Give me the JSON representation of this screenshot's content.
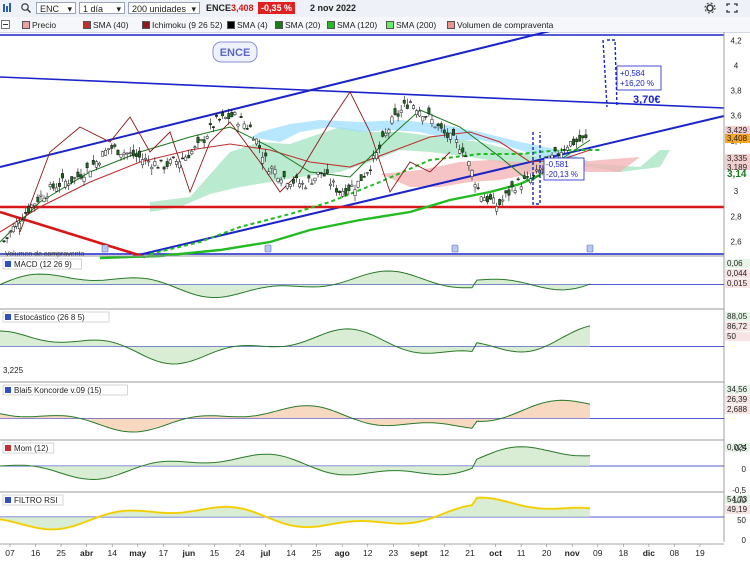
{
  "toolbar": {
    "symbol": "ENC",
    "period": "1 día",
    "units": "200 unidades",
    "ticker": "ENCE",
    "price": "3,408",
    "change": "-0,35 %",
    "date": "2 nov 2022",
    "colors": {
      "change_bg": "#e02020",
      "price": "#d01818"
    }
  },
  "legend": [
    {
      "label": "Precio",
      "color": "#f0a0a0"
    },
    {
      "label": "SMA (40)",
      "color": "#c03030"
    },
    {
      "label": "Ichimoku (9 26 52)",
      "color": "#8b1a1a"
    },
    {
      "label": "SMA (4)",
      "color": "#000000"
    },
    {
      "label": "SMA (20)",
      "color": "#1a7a1a"
    },
    {
      "label": "SMA (120)",
      "color": "#22bb22"
    },
    {
      "label": "SMA (200)",
      "color": "#66ee66"
    },
    {
      "label": "Volumen de compraventa",
      "color": "#f09090"
    }
  ],
  "main": {
    "badge": "ENCE",
    "target_label": "3,70€",
    "up_box": [
      "+0,584",
      "+16,20 %"
    ],
    "down_box": [
      "-0,581",
      "-20,13 %"
    ],
    "volume_label": "Volumen de compraventa",
    "price_tag": "3,408",
    "left_value": "3,225"
  },
  "chart_data": [
    {
      "type": "candlestick",
      "title": "",
      "x_ticks": [
        "07",
        "16",
        "25",
        "abr",
        "14",
        "may",
        "17",
        "jun",
        "15",
        "24",
        "jul",
        "14",
        "25",
        "ago",
        "12",
        "23",
        "sept",
        "12",
        "21",
        "oct",
        "11",
        "20",
        "nov",
        "09",
        "18",
        "dic",
        "08",
        "19"
      ],
      "ylim": [
        2.5,
        4.25
      ],
      "y_ticks": [
        "4,2",
        "4",
        "3,8",
        "3,6",
        "3,4",
        "3,2",
        "3",
        "2,8",
        "2,6"
      ],
      "right_labels": [
        "3,429",
        "3,408",
        "3,335",
        "3,189",
        "3,14"
      ],
      "close_approx": [
        2.6,
        2.8,
        2.95,
        3.05,
        3.1,
        3.2,
        3.35,
        3.3,
        3.25,
        3.2,
        3.25,
        3.35,
        3.55,
        3.6,
        3.5,
        3.2,
        3.1,
        3.05,
        3.15,
        3.0,
        3.05,
        3.25,
        3.55,
        3.72,
        3.6,
        3.45,
        3.35,
        2.98,
        2.88,
        3.05,
        3.1,
        3.25,
        3.38,
        3.41
      ],
      "lines": [
        "uptrend channel",
        "downtrend resistance",
        "support 2,86"
      ]
    },
    {
      "type": "line",
      "title": "MACD (12 26 9)",
      "right_labels": [
        "0,06",
        "0,044",
        "0,015"
      ],
      "values_approx": [
        0.02,
        0.05,
        0.04,
        0.03,
        0.0,
        -0.04,
        -0.02,
        0.02,
        0.06,
        0.12,
        0.15,
        0.1,
        0.0,
        -0.12,
        -0.2,
        -0.15,
        -0.05,
        0.03,
        0.06,
        0.04
      ]
    },
    {
      "type": "line",
      "title": "Estocástico (26 8 5)",
      "left_value": "3,225",
      "right_labels": [
        "88,05",
        "86,72",
        "50"
      ],
      "values_approx": [
        70,
        60,
        55,
        50,
        45,
        40,
        55,
        70,
        60,
        40,
        35,
        55,
        80,
        88,
        70,
        50,
        30,
        20,
        45,
        75,
        88
      ]
    },
    {
      "type": "area",
      "title": "Blai5 Koncorde v.09 (15)",
      "right_labels": [
        "34,56",
        "26,39",
        "2,688"
      ]
    },
    {
      "type": "area",
      "title": "Mom (12)",
      "y_ticks": [
        "0,5",
        "0",
        "-0,5"
      ],
      "right_labels": [
        "0,024"
      ]
    },
    {
      "type": "area",
      "title": "FILTRO RSI",
      "y_ticks": [
        "100",
        "50",
        "0"
      ],
      "right_labels": [
        "54,73",
        "49,19"
      ]
    }
  ]
}
